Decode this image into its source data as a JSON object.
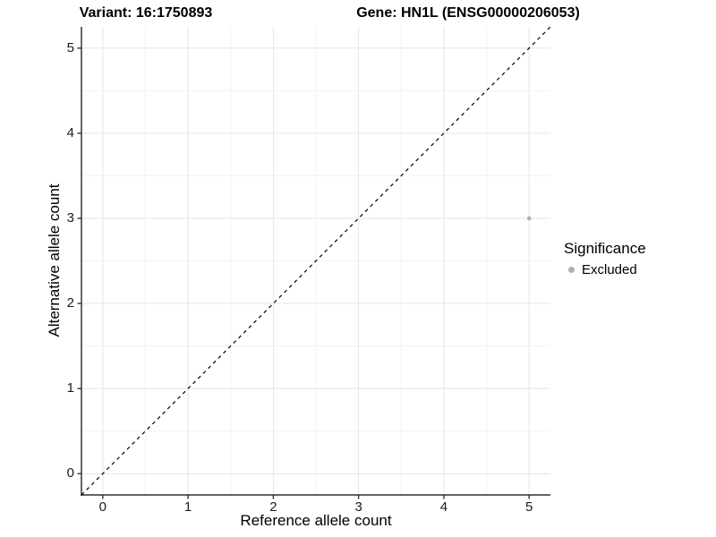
{
  "chart_data": {
    "type": "scatter",
    "titles": [
      "Variant: 16:1750893",
      "Gene: HN1L (ENSG00000206053)"
    ],
    "xlabel": "Reference allele count",
    "ylabel": "Alternative allele count",
    "xlim": [
      -0.25,
      5.25
    ],
    "ylim": [
      -0.25,
      5.25
    ],
    "xticks": [
      0,
      1,
      2,
      3,
      4,
      5
    ],
    "yticks": [
      0,
      1,
      2,
      3,
      4,
      5
    ],
    "x_minor_breaks": [
      0.5,
      1.5,
      2.5,
      3.5,
      4.5
    ],
    "y_minor_breaks": [
      0.5,
      1.5,
      2.5,
      3.5,
      4.5
    ],
    "grid": true,
    "points": [
      {
        "x": 5,
        "y": 3,
        "series": "Excluded"
      }
    ],
    "reference_line": {
      "slope": 1,
      "intercept": 0,
      "linetype": "dashed",
      "color": "#000000"
    },
    "legend": {
      "title": "Significance",
      "position": "right",
      "items": [
        {
          "label": "Excluded",
          "color": "#b0b0b0"
        }
      ]
    },
    "colors": {
      "background": "#ffffff",
      "grid_major": "#e5e5e5",
      "grid_minor": "#f2f2f2",
      "axis_line": "#4d4d4d",
      "tick_mark": "#333333"
    }
  }
}
